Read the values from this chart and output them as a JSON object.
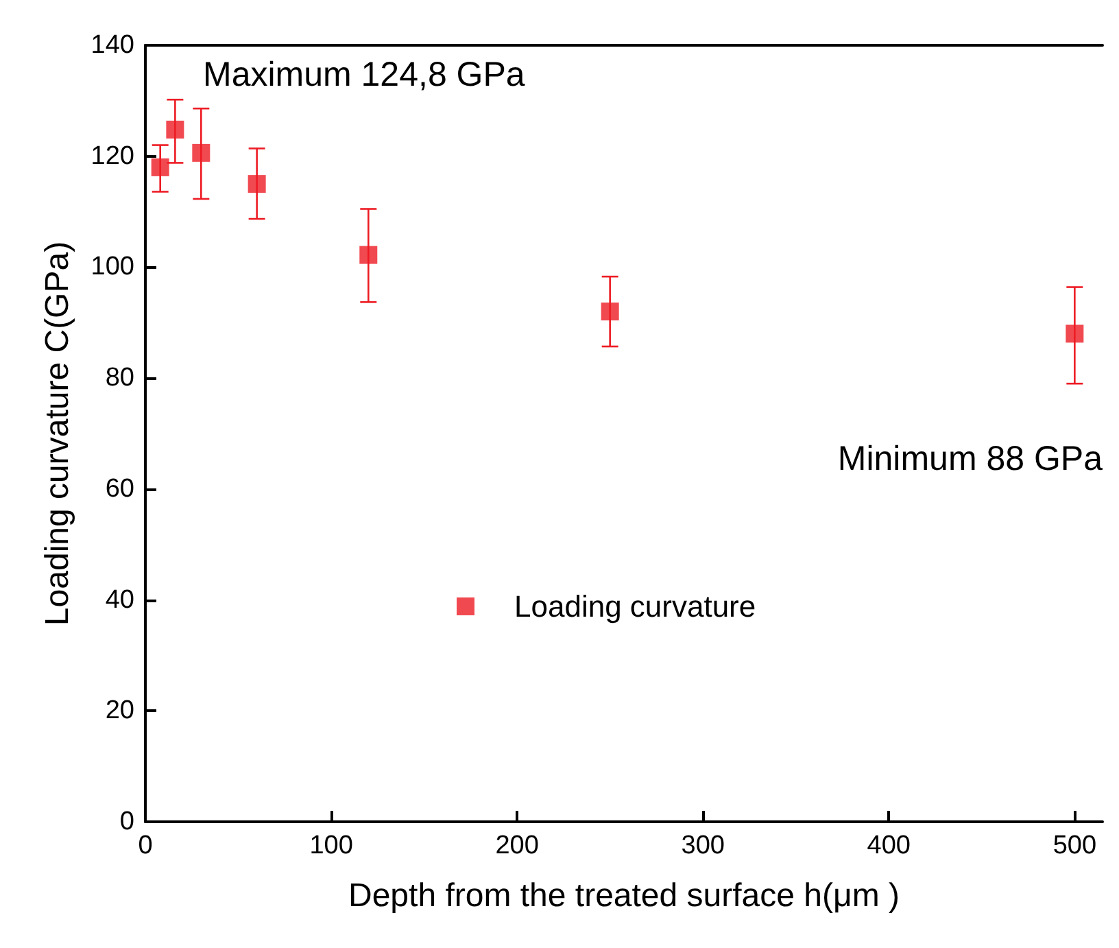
{
  "chart_data": {
    "type": "scatter",
    "xlabel": "Depth from the treated surface h(μm )",
    "ylabel": "Loading curvature C(GPa)",
    "x": [
      8,
      16,
      30,
      60,
      120,
      250,
      500
    ],
    "series": [
      {
        "name": "Loading curvature",
        "color": "#ed1c24",
        "values": [
          118,
          124.8,
          120.6,
          115,
          102.2,
          92,
          88
        ],
        "errors": [
          [
            113.6,
            122
          ],
          [
            118.8,
            130.2
          ],
          [
            112.3,
            128.6
          ],
          [
            108.7,
            121.4
          ],
          [
            93.7,
            110.5
          ],
          [
            85.7,
            98.3
          ],
          [
            79,
            96.4
          ]
        ]
      }
    ],
    "annotations": [
      "Maximum 124,8 GPa",
      "Minimum 88 GPa"
    ],
    "xlim": [
      0,
      515
    ],
    "xticks": [
      0,
      100,
      200,
      300,
      400,
      500
    ],
    "ylim": [
      0,
      140
    ],
    "yticks": [
      0,
      20,
      40,
      60,
      80,
      100,
      120,
      140
    ],
    "marker": "square",
    "legend": "center",
    "grid": false
  }
}
